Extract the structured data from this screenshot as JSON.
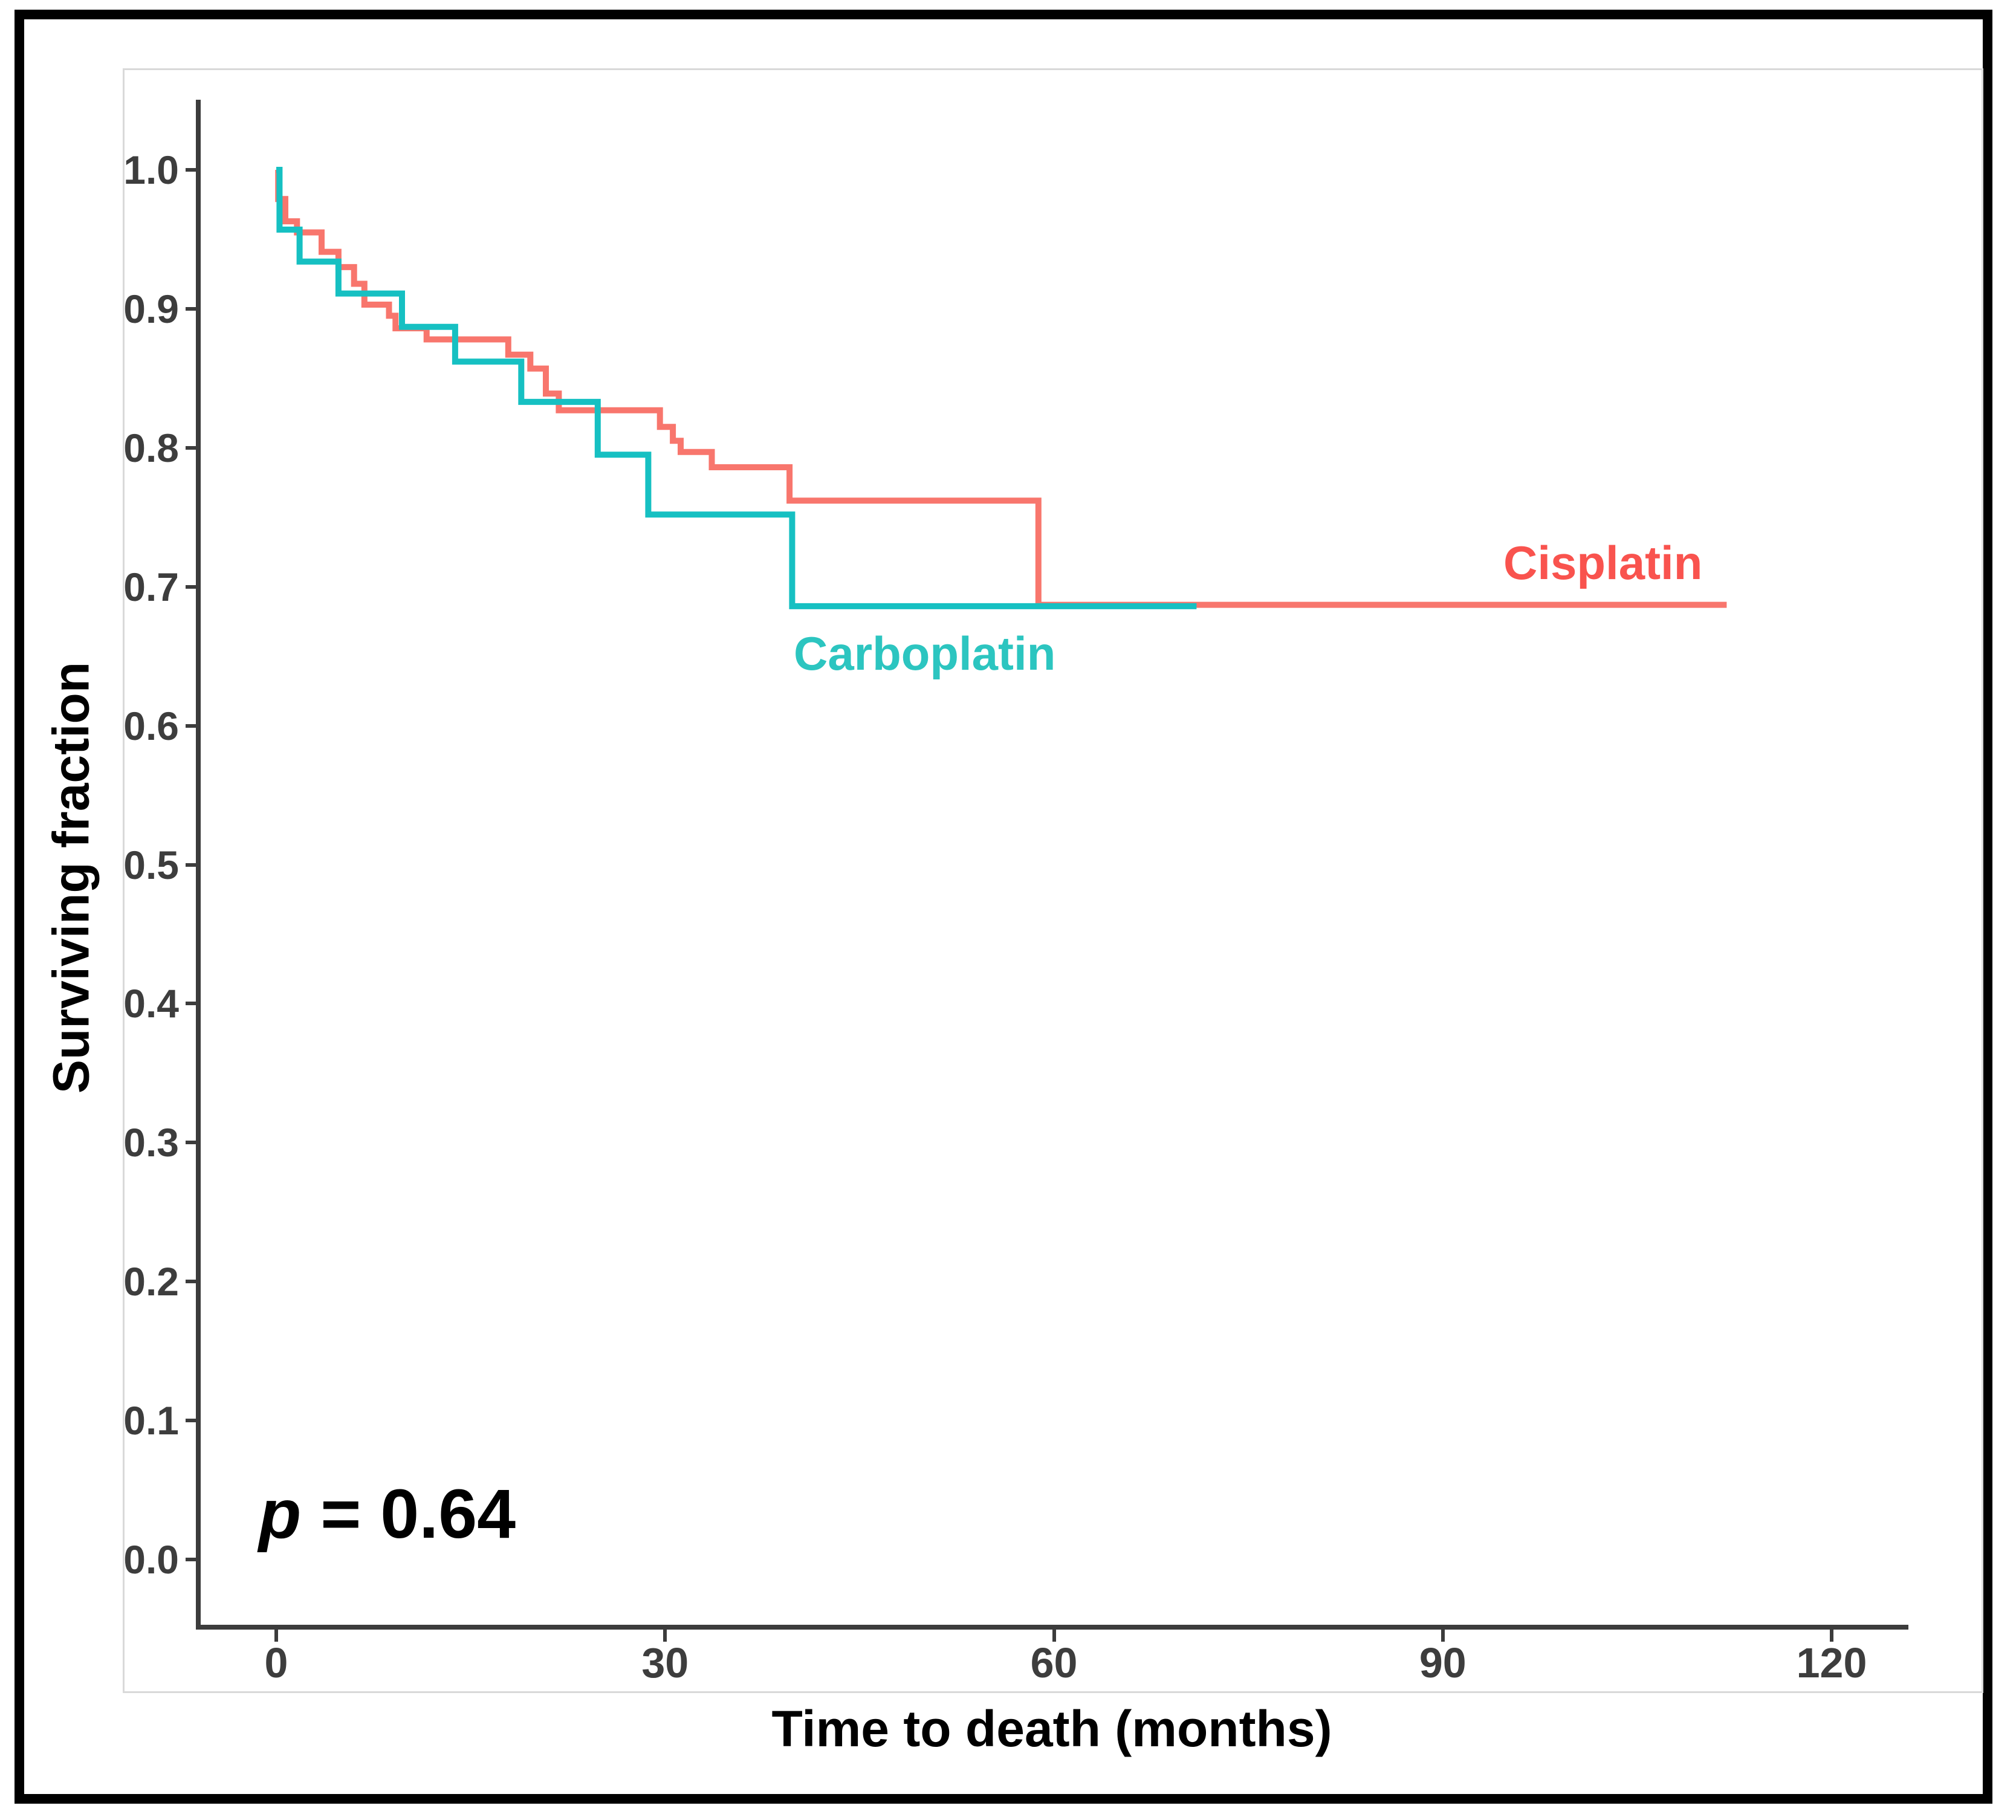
{
  "chart_data": {
    "type": "line",
    "subtype": "kaplan_meier_step",
    "title": "",
    "xlabel": "Time to death (months)",
    "ylabel": "Surviving fraction",
    "xlim": [
      0,
      120
    ],
    "ylim": [
      0.0,
      1.0
    ],
    "grid": false,
    "legend_position": "inline colored labels next to curves",
    "x_ticks": {
      "values": [
        0,
        30,
        60,
        90,
        120
      ],
      "labels": [
        "0",
        "30",
        "60",
        "90",
        "120"
      ]
    },
    "y_ticks": {
      "values": [
        1.0,
        0.9,
        0.8,
        0.7,
        0.6,
        0.5,
        0.4,
        0.3,
        0.2,
        0.1,
        0.0
      ],
      "labels": [
        "1.0",
        "0.9",
        "0.8",
        "0.7",
        "0.6",
        "0.5",
        "0.4",
        "0.3",
        "0.2",
        "0.1",
        "0.0"
      ]
    },
    "annotation_p": {
      "symbol": "p",
      "rest": " = 0.64"
    },
    "series": [
      {
        "name": "Cisplatin",
        "color": "#F8766D",
        "label_color": "#F9534E",
        "end_time": 111.9,
        "points": [
          [
            0,
            1.0
          ],
          [
            0.15,
            0.979
          ],
          [
            0.7,
            0.963
          ],
          [
            1.6,
            0.955
          ],
          [
            3.5,
            0.941
          ],
          [
            4.8,
            0.93
          ],
          [
            6.0,
            0.918
          ],
          [
            6.8,
            0.903
          ],
          [
            8.7,
            0.895
          ],
          [
            9.2,
            0.886
          ],
          [
            11.6,
            0.878
          ],
          [
            17.9,
            0.867
          ],
          [
            19.6,
            0.857
          ],
          [
            20.8,
            0.839
          ],
          [
            21.8,
            0.827
          ],
          [
            29.6,
            0.815
          ],
          [
            30.6,
            0.805
          ],
          [
            31.2,
            0.797
          ],
          [
            33.6,
            0.786
          ],
          [
            39.6,
            0.762
          ],
          [
            58.8,
            0.687
          ]
        ]
      },
      {
        "name": "Carboplatin",
        "color": "#16C0C2",
        "label_color": "#2CC5C0",
        "end_time": 71.0,
        "points": [
          [
            0,
            1.0
          ],
          [
            0.25,
            0.957
          ],
          [
            1.8,
            0.934
          ],
          [
            4.8,
            0.911
          ],
          [
            9.7,
            0.887
          ],
          [
            13.8,
            0.862
          ],
          [
            18.9,
            0.833
          ],
          [
            24.8,
            0.795
          ],
          [
            28.7,
            0.752
          ],
          [
            39.8,
            0.686
          ]
        ]
      }
    ]
  }
}
